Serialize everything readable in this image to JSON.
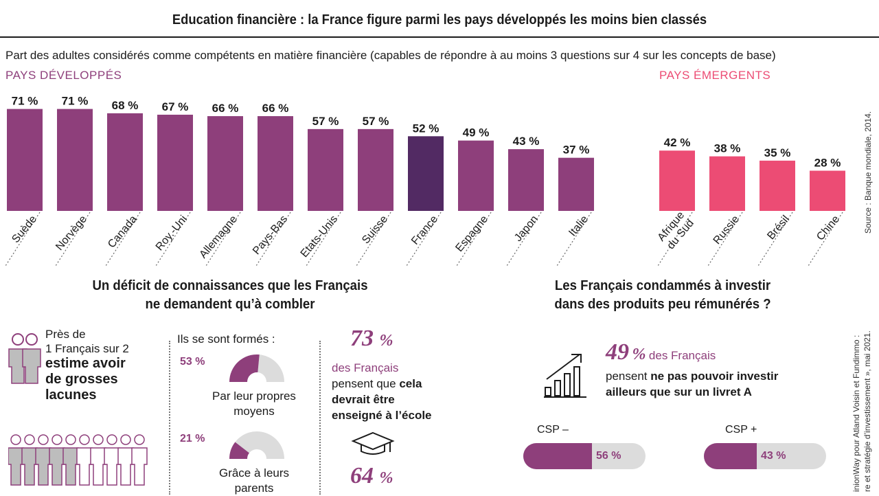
{
  "title": "Education financière : la France figure parmi les pays développés les moins bien classés",
  "subtitle": "Part des adultes considérés comme compétents en matière financière (capables de répondre à au moins 3 questions sur 4 sur les concepts de base)",
  "groups": {
    "developed": "PAYS DÉVELOPPÉS",
    "emerging": "PAYS ÉMERGENTS"
  },
  "source_top": "Source : Banque mondiale, 2014.",
  "colors": {
    "developed": "#8e3f7b",
    "highlight": "#522a63",
    "emerging": "#ec4c74",
    "gray": "#dcdcdc"
  },
  "chart_data": {
    "type": "bar",
    "title": "",
    "xlabel": "",
    "ylabel": "",
    "unit": "%",
    "ylim": [
      0,
      75
    ],
    "categories": [
      "Suède",
      "Norvège",
      "Canada",
      "Roy.-Uni",
      "Allemagne",
      "Pays-Bas",
      "Etats-Unis",
      "Suisse",
      "France",
      "Espagne",
      "Japon",
      "Italie",
      "Afrique du Sud",
      "Russie",
      "Brésil",
      "Chine"
    ],
    "values": [
      71,
      71,
      68,
      67,
      66,
      66,
      57,
      57,
      52,
      49,
      43,
      37,
      42,
      38,
      35,
      28
    ],
    "value_labels": [
      "71 %",
      "71 %",
      "68 %",
      "67 %",
      "66 %",
      "66 %",
      "57 %",
      "57 %",
      "52 %",
      "49 %",
      "43 %",
      "37 %",
      "42 %",
      "38 %",
      "35 %",
      "28 %"
    ],
    "label_lines": [
      [
        "Suède"
      ],
      [
        "Norvège"
      ],
      [
        "Canada"
      ],
      [
        "Roy.-Uni"
      ],
      [
        "Allemagne"
      ],
      [
        "Pays-Bas"
      ],
      [
        "Etats-Unis"
      ],
      [
        "Suisse"
      ],
      [
        "France"
      ],
      [
        "Espagne"
      ],
      [
        "Japon"
      ],
      [
        "Italie"
      ],
      [
        "Afrique",
        "du Sud"
      ],
      [
        "Russie"
      ],
      [
        "Brésil"
      ],
      [
        "Chine"
      ]
    ],
    "group": [
      "developed",
      "developed",
      "developed",
      "developed",
      "developed",
      "developed",
      "developed",
      "developed",
      "developed",
      "developed",
      "developed",
      "developed",
      "emerging",
      "emerging",
      "emerging",
      "emerging"
    ],
    "highlight": "France",
    "grid": false,
    "legend": "none"
  },
  "section1": {
    "title_line1": "Un déficit de connaissances que les Français",
    "title_line2": "ne demandent qu’à combler",
    "pres_line1": "Près de",
    "pres_line2": "1 Français sur 2",
    "pres_line3": "estime avoir",
    "pres_line4": "de grosses",
    "pres_line5": "lacunes",
    "formed_label": "Ils se sont formés :",
    "gauge1": {
      "pct_label": "53 %",
      "value": 53,
      "caption_line1": "Par leur propres",
      "caption_line2": "moyens"
    },
    "gauge2": {
      "pct_label": "21 %",
      "value": 21,
      "caption_line1": "Grâce à leurs",
      "caption_line2": "parents"
    },
    "stat1": {
      "num": "73",
      "pct": "%",
      "line1": "des Français",
      "line2a": "pensent que ",
      "line2b": "cela",
      "line3": "devrait être",
      "line4": "enseigné à l’école"
    },
    "stat2": {
      "num": "64",
      "pct": "%"
    }
  },
  "section2": {
    "title_line1": "Les Français condammés à investir",
    "title_line2": "dans des produits peu rémunérés ?",
    "stat": {
      "num": "49",
      "pct": "%",
      "after": " des Français",
      "line2a": "pensent ",
      "line2b": "ne pas pouvoir investir",
      "line3": "ailleurs que sur un livret A"
    },
    "csp_minus": {
      "label": "CSP –",
      "value": 56,
      "value_label": "56 %"
    },
    "csp_plus": {
      "label": "CSP +",
      "value": 43,
      "value_label": "43 %"
    }
  },
  "source_bottom_1": "inionWay pour Atland Voisin et Fundimmo :",
  "source_bottom_2": "re et stratégie d’investissement », mai 2021."
}
